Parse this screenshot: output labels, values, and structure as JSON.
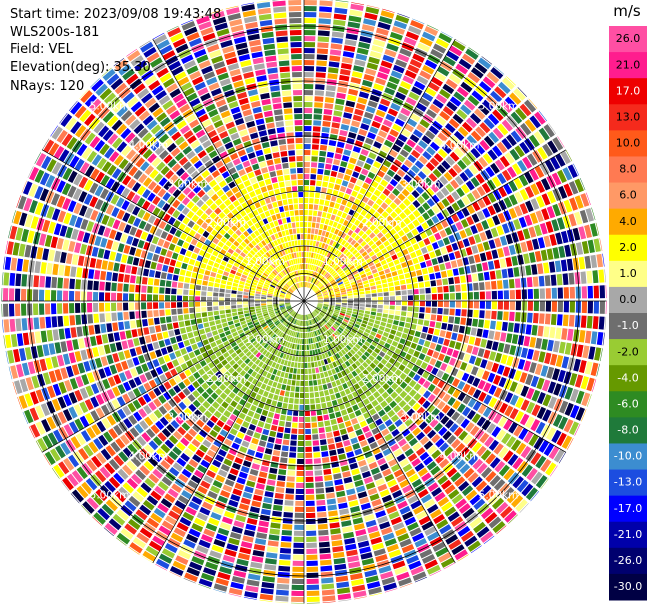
{
  "header": {
    "start_time": "Start time: 2023/09/08 19:43:48",
    "site": "WLS200s-181",
    "field": "Field: VEL",
    "elevation": "Elevation(deg): 35.30",
    "nrays": "NRays: 120"
  },
  "chart_data": {
    "type": "heatmap",
    "plot_kind": "polar PPI radial velocity",
    "nrays": 120,
    "range_ring_labels": [
      "1.00km",
      "2.00km",
      "3.00km",
      "4.00km",
      "5.00km"
    ],
    "range_rings_km": [
      1,
      2,
      3,
      4,
      5
    ],
    "max_range_km": 5.5,
    "grid": true,
    "colorbar": {
      "unit": "m/s",
      "ticks": [
        "26.0",
        "21.0",
        "17.0",
        "13.0",
        "10.0",
        "8.0",
        "6.0",
        "4.0",
        "2.0",
        "1.0",
        "0.0",
        "-1.0",
        "-2.0",
        "-4.0",
        "-6.0",
        "-8.0",
        "-10.0",
        "-13.0",
        "-17.0",
        "-21.0",
        "-26.0",
        "-30.0"
      ],
      "colors": [
        "#ff4fa3",
        "#ff1d8e",
        "#ee0000",
        "#f52a1c",
        "#ff5a1a",
        "#ff7a52",
        "#ff9966",
        "#ffaa00",
        "#ffff00",
        "#ffff88",
        "#a8a8a8",
        "#6e6e6e",
        "#99cc33",
        "#669900",
        "#2e8b22",
        "#1f7a3a",
        "#3c8dd0",
        "#1c4de0",
        "#0000ff",
        "#0000aa",
        "#00006e",
        "#000044"
      ]
    },
    "near_field": {
      "upper_color_values": [
        2.0,
        4.0,
        6.0
      ],
      "lower_color_values": [
        -2.0,
        -4.0,
        -6.0
      ],
      "note_values": [
        0.0,
        1.0,
        -1.0
      ]
    }
  }
}
